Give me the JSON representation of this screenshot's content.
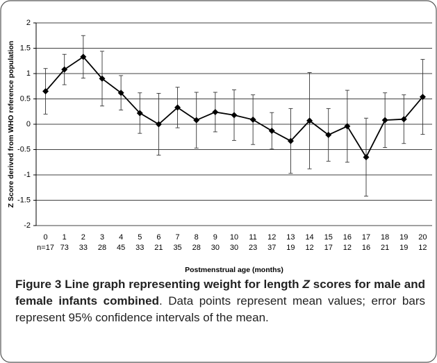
{
  "chart_data": {
    "type": "line",
    "y_axis_label": "Z Score derived from WHO reference population",
    "x_axis_label": "Postmenstrual age (months)",
    "categories": [
      "0",
      "1",
      "2",
      "3",
      "4",
      "5",
      "6",
      "7",
      "8",
      "9",
      "10",
      "11",
      "12",
      "13",
      "14",
      "15",
      "16",
      "17",
      "18",
      "19",
      "20"
    ],
    "n_labels": [
      "n=17",
      "73",
      "33",
      "28",
      "45",
      "33",
      "21",
      "35",
      "28",
      "30",
      "30",
      "23",
      "37",
      "19",
      "12",
      "17",
      "12",
      "16",
      "21",
      "19",
      "12"
    ],
    "values": [
      0.65,
      1.08,
      1.33,
      0.9,
      0.62,
      0.22,
      0.0,
      0.33,
      0.08,
      0.24,
      0.18,
      0.09,
      -0.13,
      -0.33,
      0.07,
      -0.21,
      -0.04,
      -0.65,
      0.08,
      0.1,
      0.54
    ],
    "errors": [
      0.45,
      0.3,
      0.42,
      0.54,
      0.34,
      0.4,
      0.61,
      0.4,
      0.55,
      0.39,
      0.5,
      0.49,
      0.36,
      0.64,
      0.95,
      0.52,
      0.71,
      0.77,
      0.54,
      0.48,
      0.74
    ],
    "color": "#000000",
    "ylim": [
      -2,
      2
    ],
    "yticks": [
      2,
      1.5,
      1,
      0.5,
      0,
      -0.5,
      -1,
      -1.5,
      -2
    ],
    "grid": true
  },
  "caption": {
    "label": "Figure 3",
    "title_a": " Line graph representing weight for length ",
    "title_z": "Z",
    "title_b": " scores for male and female infants combined",
    "text": ". Data points represent mean values; error bars represent 95% confidence intervals of the mean."
  }
}
